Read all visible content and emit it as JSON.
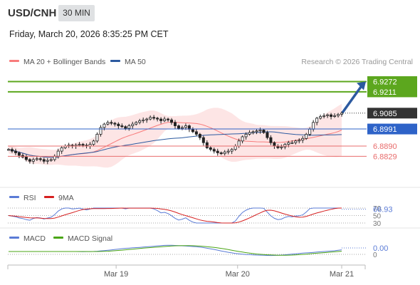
{
  "header": {
    "symbol": "USD/CNH",
    "timeframe": "30 MIN",
    "datetime": "Friday, March 20, 2026 8:35:25 PM CET"
  },
  "legend": {
    "ma20": "MA 20 + Bollinger Bands",
    "ma50": "MA 50",
    "credit": "Research © 2026 Trading Central"
  },
  "colors": {
    "ma20": "#f87c7c",
    "ma50": "#2c5aa0",
    "band_fill": "#fde0e0",
    "resistance": "#5ca71e",
    "pivot": "#2e63c8",
    "support": "#e86c6c",
    "price_box": "#333333",
    "rsi": "#5a7bd6",
    "rsi_ma": "#d62020",
    "macd": "#5a7bd6",
    "macd_signal": "#4aa516",
    "arrow": "#2c5aa0"
  },
  "levels": [
    {
      "name": "resistance-2",
      "value": 6.9272,
      "label": "6.9272",
      "type": "resistance"
    },
    {
      "name": "resistance-1",
      "value": 6.9211,
      "label": "6.9211",
      "type": "resistance"
    },
    {
      "name": "last-price",
      "value": 6.9085,
      "label": "6.9085",
      "type": "last"
    },
    {
      "name": "pivot",
      "value": 6.8991,
      "label": "6.8991",
      "type": "pivot"
    },
    {
      "name": "support-1",
      "value": 6.889,
      "label": "6.8890",
      "type": "support"
    },
    {
      "name": "support-2",
      "value": 6.8829,
      "label": "6.8829",
      "type": "support"
    }
  ],
  "chart_data": {
    "type": "candlestick",
    "ylim": [
      6.87,
      6.935
    ],
    "x_ticks": [
      "Mar 19",
      "Mar 20",
      "Mar 21"
    ],
    "x_tick_index": [
      31,
      66,
      96
    ],
    "closes": [
      6.887,
      6.886,
      6.885,
      6.8835,
      6.8825,
      6.881,
      6.88,
      6.881,
      6.8815,
      6.881,
      6.88,
      6.8805,
      6.881,
      6.883,
      6.886,
      6.888,
      6.889,
      6.8895,
      6.889,
      6.8895,
      6.89,
      6.8895,
      6.889,
      6.89,
      6.892,
      6.896,
      6.9,
      6.902,
      6.903,
      6.9025,
      6.902,
      6.901,
      6.9005,
      6.8995,
      6.901,
      6.902,
      6.903,
      6.904,
      6.9045,
      6.905,
      6.906,
      6.9055,
      6.905,
      6.904,
      6.905,
      6.9045,
      6.903,
      6.901,
      6.8995,
      6.9,
      6.901,
      6.899,
      6.8975,
      6.896,
      6.894,
      6.891,
      6.888,
      6.887,
      6.886,
      6.885,
      6.8845,
      6.8855,
      6.886,
      6.887,
      6.889,
      6.892,
      6.8945,
      6.896,
      6.897,
      6.8975,
      6.898,
      6.8985,
      6.897,
      6.894,
      6.891,
      6.889,
      6.888,
      6.8885,
      6.89,
      6.891,
      6.891,
      6.892,
      6.8925,
      6.8935,
      6.896,
      6.899,
      6.903,
      6.9055,
      6.9065,
      6.907,
      6.9075,
      6.9065,
      6.907,
      6.9078,
      6.9085
    ],
    "rsi": {
      "name": "RSI",
      "ma_name": "9MA",
      "last": 66.93,
      "last_label": "66.93",
      "levels": [
        70,
        50,
        30
      ],
      "level_labels": [
        "70",
        "50",
        "30"
      ]
    },
    "macd": {
      "name": "MACD",
      "signal_name": "MACD Signal",
      "last": 0.0,
      "last_label": "0.00",
      "levels": [
        0
      ],
      "level_labels": [
        "0"
      ]
    }
  }
}
